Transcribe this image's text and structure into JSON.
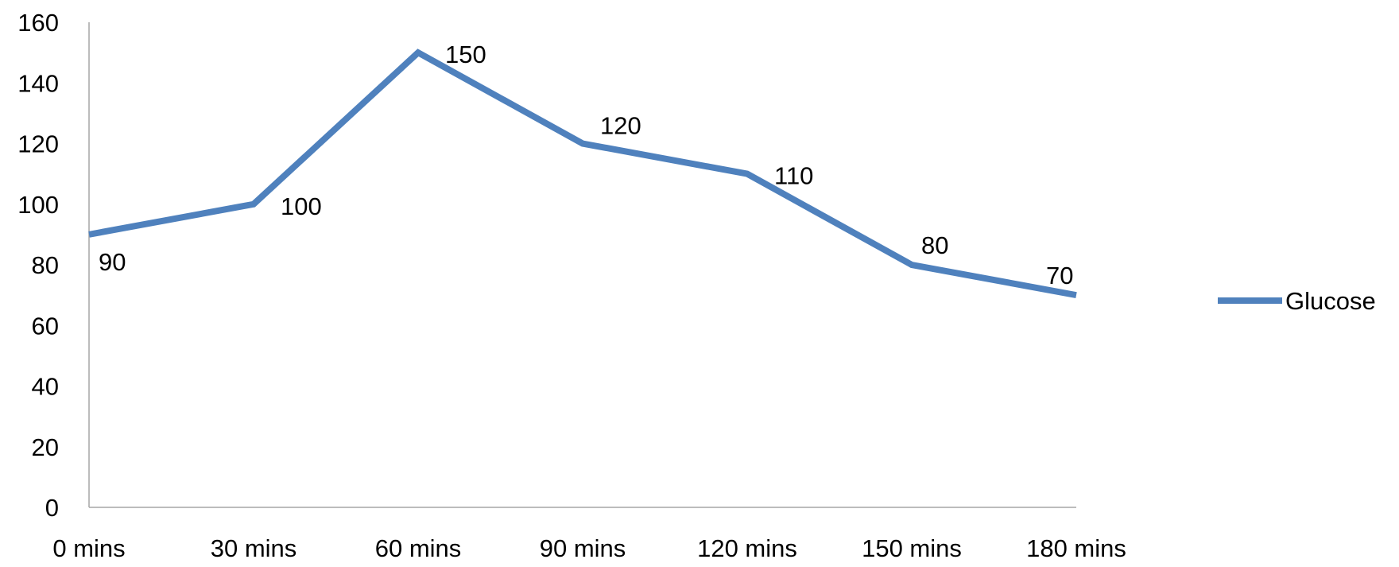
{
  "chart_data": {
    "type": "line",
    "title": "",
    "xlabel": "",
    "ylabel": "",
    "categories": [
      "0 mins",
      "30 mins",
      "60 mins",
      "90 mins",
      "120 mins",
      "150 mins",
      "180 mins"
    ],
    "series": [
      {
        "name": "Glucose",
        "values": [
          90,
          100,
          150,
          120,
          110,
          80,
          70
        ],
        "color": "#4F81BD"
      }
    ],
    "ylim": [
      0,
      160
    ],
    "yticks": [
      0,
      20,
      40,
      60,
      80,
      100,
      120,
      140,
      160
    ],
    "grid": false,
    "legend_position": "right",
    "data_labels": true,
    "axis_color": "#A6A6A6"
  }
}
